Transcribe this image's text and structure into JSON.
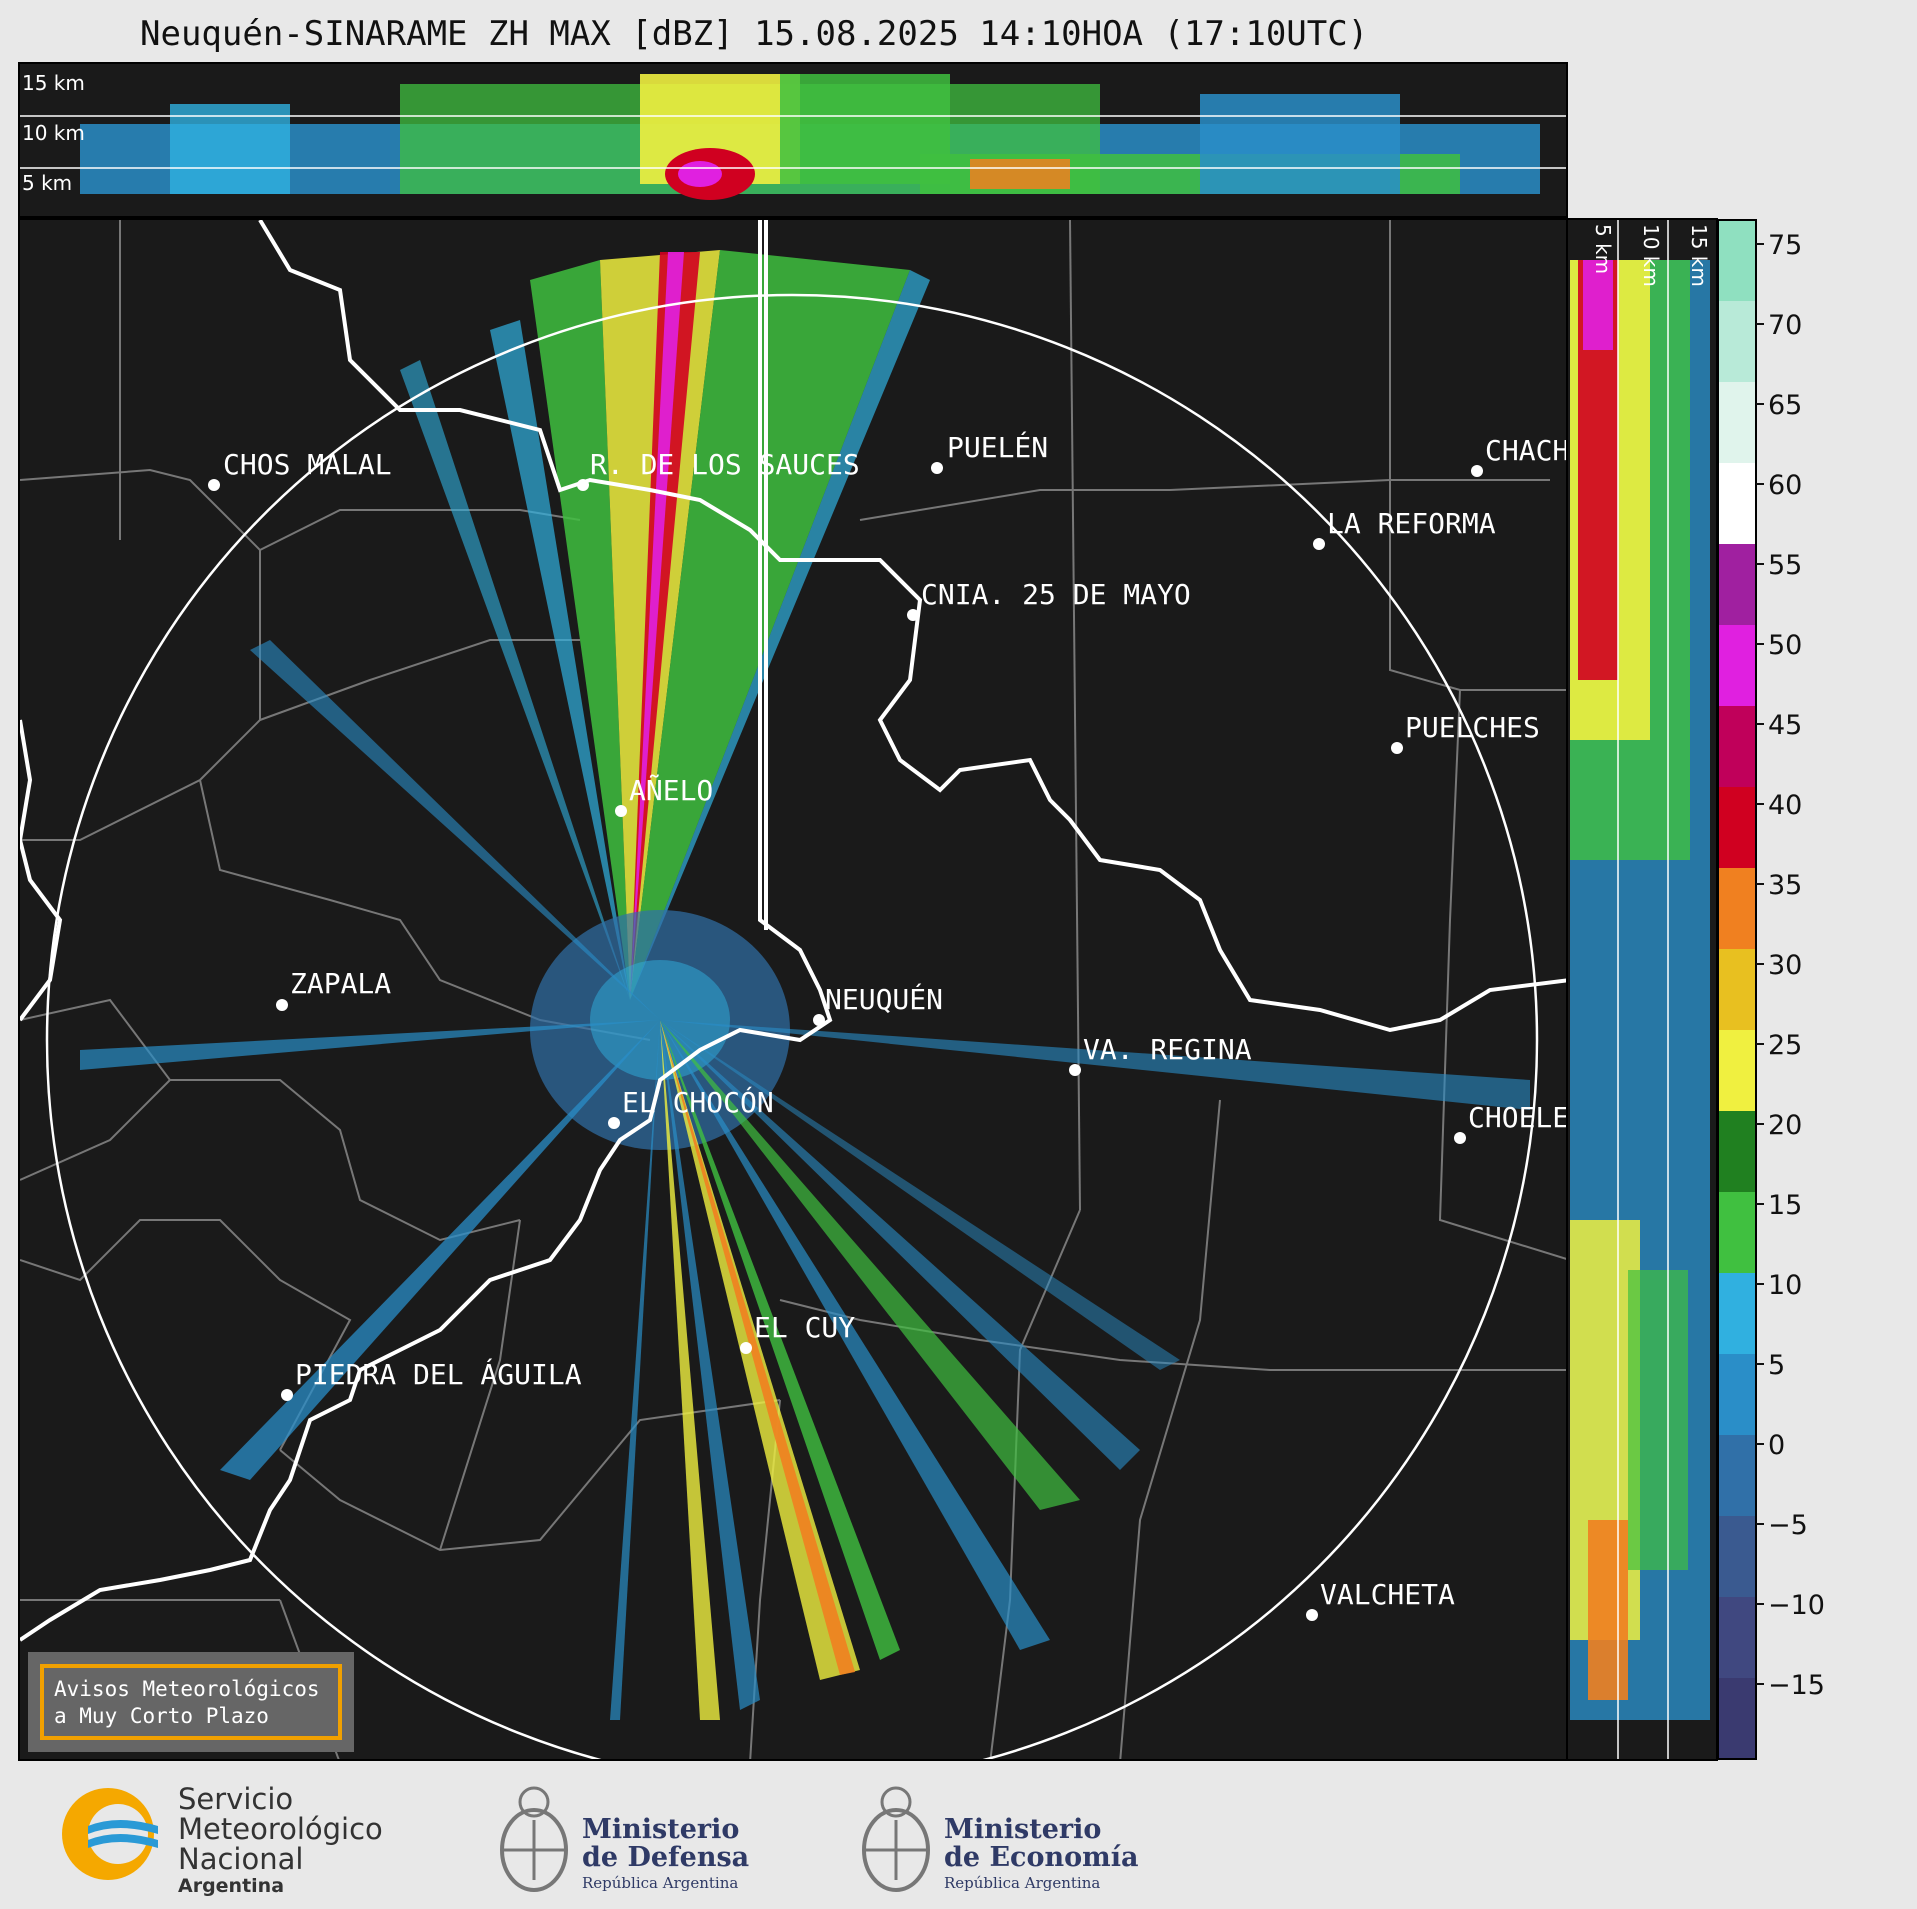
{
  "title": "Neuquén-SINARAME ZH MAX [dBZ] 15.08.2025 14:10HOA (17:10UTC)",
  "top_panel": {
    "altitudes": [
      "15 km",
      "10 km",
      "5 km"
    ]
  },
  "side_panel": {
    "altitudes": [
      "5 km",
      "10 km",
      "15 km"
    ]
  },
  "colorbar": {
    "ticks": [
      "75",
      "70",
      "65",
      "60",
      "55",
      "50",
      "45",
      "40",
      "35",
      "30",
      "25",
      "20",
      "15",
      "10",
      "5",
      "0",
      "−5",
      "−10",
      "−15"
    ],
    "colors": [
      "#8fe0c0",
      "#b8ead8",
      "#e0f4ec",
      "#ffffff",
      "#a020a0",
      "#e020e0",
      "#c0005a",
      "#d00020",
      "#f08020",
      "#e8c020",
      "#f0f040",
      "#208020",
      "#40c040",
      "#30b0e0",
      "#2a8ec8",
      "#3070a8",
      "#3a5a90",
      "#404880",
      "#3a3a70"
    ]
  },
  "cities": [
    {
      "name": "CHOS MALAL",
      "id": "chos-malal"
    },
    {
      "name": "R. DE LOS SAUCES",
      "id": "rincon-de-los-sauces"
    },
    {
      "name": "PUELÉN",
      "id": "puelen"
    },
    {
      "name": "CHACH",
      "id": "chacharramendi"
    },
    {
      "name": "LA REFORMA",
      "id": "la-reforma"
    },
    {
      "name": "CNIA. 25 DE MAYO",
      "id": "colonia-25-de-mayo"
    },
    {
      "name": "PUELCHES",
      "id": "puelches"
    },
    {
      "name": "AÑELO",
      "id": "anelo"
    },
    {
      "name": "ZAPALA",
      "id": "zapala"
    },
    {
      "name": "NEUQUÉN",
      "id": "neuquen"
    },
    {
      "name": "VA. REGINA",
      "id": "villa-regina"
    },
    {
      "name": "EL CHOCÓN",
      "id": "el-chocon"
    },
    {
      "name": "CHOELE",
      "id": "choele-choel"
    },
    {
      "name": "EL CUY",
      "id": "el-cuy"
    },
    {
      "name": "PIEDRA DEL ÁGUILA",
      "id": "piedra-del-aguila"
    },
    {
      "name": "VALCHETA",
      "id": "valcheta"
    }
  ],
  "notice": {
    "line1": "Avisos Meteorológicos",
    "line2": "a Muy Corto Plazo"
  },
  "logos": {
    "smn": {
      "line1": "Servicio",
      "line2": "Meteorológico",
      "line3": "Nacional",
      "line4": "Argentina"
    },
    "defensa": {
      "line1": "Ministerio",
      "line2": "de Defensa",
      "line3": "República Argentina"
    },
    "economia": {
      "line1": "Ministerio",
      "line2": "de Economía",
      "line3": "República Argentina"
    }
  }
}
